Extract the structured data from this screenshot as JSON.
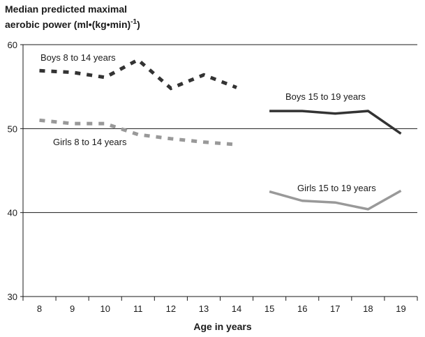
{
  "chart_data": {
    "type": "line",
    "title_line1": "Median predicted maximal",
    "title_line2_base": "aerobic power (ml•(kg•min)",
    "title_line2_sup": "-1",
    "title_line2_end": ")",
    "xlabel": "Age in years",
    "ylabel": "",
    "x": [
      8,
      9,
      10,
      11,
      12,
      13,
      14,
      15,
      16,
      17,
      18,
      19
    ],
    "ylim": [
      30,
      60
    ],
    "yticks": [
      30,
      40,
      50,
      60
    ],
    "grid": "horizontal",
    "series": [
      {
        "name": "Boys 8 to 14 years",
        "x": [
          8,
          9,
          10,
          11,
          12,
          13,
          14
        ],
        "values": [
          56.9,
          56.7,
          56.1,
          58.2,
          54.8,
          56.4,
          54.9
        ],
        "color": "#333333",
        "style": "dashed"
      },
      {
        "name": "Girls 8 to 14 years",
        "x": [
          8,
          9,
          10,
          11,
          12,
          13,
          14
        ],
        "values": [
          51.0,
          50.6,
          50.6,
          49.3,
          48.8,
          48.4,
          48.1
        ],
        "color": "#999999",
        "style": "dashed"
      },
      {
        "name": "Boys 15 to 19 years",
        "x": [
          15,
          16,
          17,
          18,
          19
        ],
        "values": [
          52.1,
          52.1,
          51.8,
          52.1,
          49.4
        ],
        "color": "#333333",
        "style": "solid"
      },
      {
        "name": "Girls 15 to 19 years",
        "x": [
          15,
          16,
          17,
          18,
          19
        ],
        "values": [
          42.5,
          41.4,
          41.2,
          40.4,
          42.6
        ],
        "color": "#999999",
        "style": "solid"
      }
    ]
  }
}
